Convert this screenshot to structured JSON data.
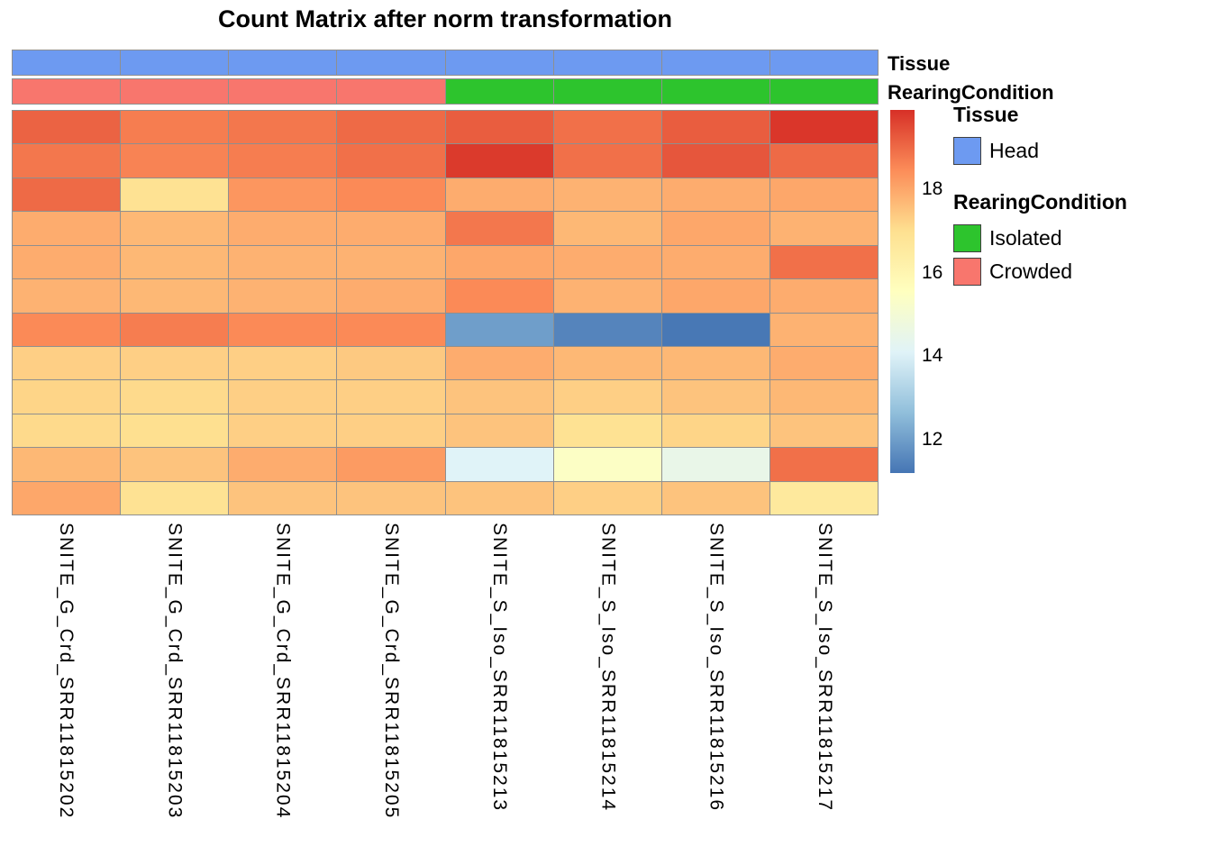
{
  "title": "Count Matrix after norm transformation",
  "annotations": {
    "tissue": {
      "label": "Tissue",
      "values": [
        "Head",
        "Head",
        "Head",
        "Head",
        "Head",
        "Head",
        "Head",
        "Head"
      ],
      "colors": {
        "Head": "#6D9AF1"
      }
    },
    "rearing": {
      "label": "RearingCondition",
      "values": [
        "Crowded",
        "Crowded",
        "Crowded",
        "Crowded",
        "Isolated",
        "Isolated",
        "Isolated",
        "Isolated"
      ],
      "colors": {
        "Isolated": "#2DC42D",
        "Crowded": "#F8766D"
      }
    }
  },
  "chart_data": {
    "type": "heatmap",
    "title": "Count Matrix after norm transformation",
    "columns": [
      "SNITE_G_Crd_SRR11815202",
      "SNITE_G_Crd_SRR11815203",
      "SNITE_G_Crd_SRR11815204",
      "SNITE_G_Crd_SRR11815205",
      "SNITE_S_Iso_SRR11815213",
      "SNITE_S_Iso_SRR11815214",
      "SNITE_S_Iso_SRR11815216",
      "SNITE_S_Iso_SRR11815217"
    ],
    "col_annotations": {
      "Tissue": [
        "Head",
        "Head",
        "Head",
        "Head",
        "Head",
        "Head",
        "Head",
        "Head"
      ],
      "RearingCondition": [
        "Crowded",
        "Crowded",
        "Crowded",
        "Crowded",
        "Isolated",
        "Isolated",
        "Isolated",
        "Isolated"
      ]
    },
    "values": [
      [
        19.1,
        18.7,
        18.8,
        19.0,
        19.2,
        18.9,
        19.2,
        19.8
      ],
      [
        18.8,
        18.6,
        18.7,
        18.9,
        19.75,
        18.9,
        19.3,
        19.0
      ],
      [
        19.0,
        16.9,
        18.3,
        18.5,
        17.9,
        17.8,
        17.9,
        18.0
      ],
      [
        17.9,
        17.7,
        17.9,
        17.9,
        18.8,
        17.7,
        18.0,
        17.8
      ],
      [
        17.9,
        17.7,
        17.8,
        17.8,
        18.0,
        17.9,
        17.9,
        18.9
      ],
      [
        17.8,
        17.7,
        17.8,
        17.9,
        18.5,
        17.8,
        18.0,
        17.9
      ],
      [
        18.5,
        18.7,
        18.5,
        18.5,
        12.0,
        11.5,
        11.25,
        17.8
      ],
      [
        17.3,
        17.3,
        17.3,
        17.4,
        17.9,
        17.7,
        17.7,
        17.9
      ],
      [
        17.2,
        17.1,
        17.3,
        17.3,
        17.5,
        17.3,
        17.5,
        17.7
      ],
      [
        17.1,
        17.0,
        17.3,
        17.3,
        17.5,
        16.9,
        17.2,
        17.5
      ],
      [
        17.7,
        17.5,
        17.9,
        18.2,
        14.1,
        15.4,
        14.5,
        18.9
      ],
      [
        18.0,
        16.9,
        17.5,
        17.5,
        17.5,
        17.3,
        17.5,
        16.6
      ]
    ],
    "color_scale": {
      "palette": "RdYlBu reversed",
      "stops": [
        "#4575B4",
        "#91BFDB",
        "#E0F3F8",
        "#FFFFBF",
        "#FEE090",
        "#FC8D59",
        "#D73027"
      ],
      "domain": [
        11.2,
        19.9
      ],
      "ticks": [
        18,
        16,
        14,
        12
      ]
    },
    "legend_position": "right",
    "grid_border_color": "#8F8F8F"
  },
  "legend": {
    "tissue": {
      "header": "Tissue",
      "items": [
        {
          "label": "Head",
          "color": "#6D9AF1"
        }
      ]
    },
    "rearing": {
      "header": "RearingCondition",
      "items": [
        {
          "label": "Isolated",
          "color": "#2DC42D"
        },
        {
          "label": "Crowded",
          "color": "#F8766D"
        }
      ]
    }
  }
}
